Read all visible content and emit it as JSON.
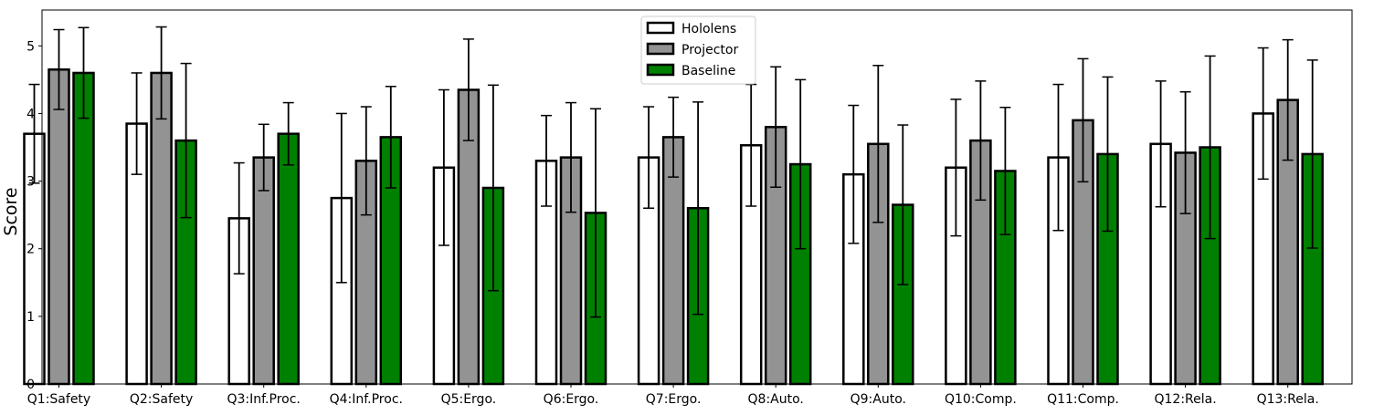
{
  "chart_data": {
    "type": "bar",
    "title": "",
    "xlabel": "",
    "ylabel": "Score",
    "ylim": [
      0,
      5.53
    ],
    "yticks": [
      0,
      1,
      2,
      3,
      4,
      5
    ],
    "grid": false,
    "legend_position": "top-center",
    "categories": [
      "Q1:Safety",
      "Q2:Safety",
      "Q3:Inf.Proc.",
      "Q4:Inf.Proc.",
      "Q5:Ergo.",
      "Q6:Ergo.",
      "Q7:Ergo.",
      "Q8:Auto.",
      "Q9:Auto.",
      "Q10:Comp.",
      "Q11:Comp.",
      "Q12:Rela.",
      "Q13:Rela."
    ],
    "series": [
      {
        "name": "Hololens",
        "color": "#ffffff",
        "values": [
          3.7,
          3.85,
          2.45,
          2.75,
          3.2,
          3.3,
          3.35,
          3.53,
          3.1,
          3.2,
          3.35,
          3.55,
          4.0
        ],
        "errors": [
          0.73,
          0.75,
          0.82,
          1.25,
          1.15,
          0.67,
          0.75,
          0.9,
          1.02,
          1.01,
          1.08,
          0.93,
          0.97
        ]
      },
      {
        "name": "Projector",
        "color": "#939393",
        "values": [
          4.65,
          4.6,
          3.35,
          3.3,
          4.35,
          3.35,
          3.65,
          3.8,
          3.55,
          3.6,
          3.9,
          3.42,
          4.2
        ],
        "errors": [
          0.59,
          0.68,
          0.49,
          0.8,
          0.75,
          0.81,
          0.59,
          0.89,
          1.16,
          0.88,
          0.91,
          0.9,
          0.89
        ]
      },
      {
        "name": "Baseline",
        "color": "#008000",
        "values": [
          4.6,
          3.6,
          3.7,
          3.65,
          2.9,
          2.53,
          2.6,
          3.25,
          2.65,
          3.15,
          3.4,
          3.5,
          3.4
        ],
        "errors": [
          0.67,
          1.14,
          0.46,
          0.75,
          1.52,
          1.54,
          1.57,
          1.25,
          1.18,
          0.94,
          1.14,
          1.35,
          1.39
        ]
      }
    ]
  }
}
